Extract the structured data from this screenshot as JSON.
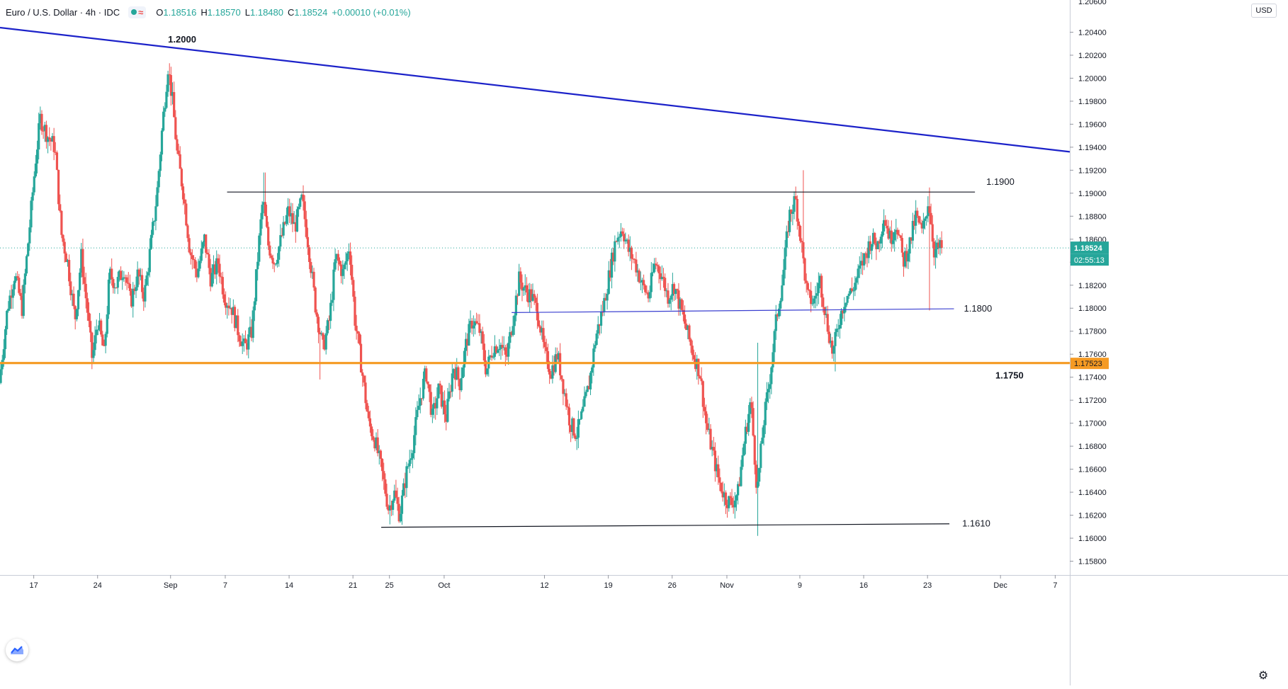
{
  "legend": {
    "symbol": "Euro / U.S. Dollar · 4h · IDC",
    "open_key": "O",
    "open": "1.18516",
    "high_key": "H",
    "high": "1.18570",
    "low_key": "L",
    "low": "1.18480",
    "close_key": "C",
    "close": "1.18524",
    "change": "+0.00010 (+0.01%)"
  },
  "price_scale": {
    "currency": "USD",
    "last_price_label": "1.18524",
    "countdown": "02:55:13",
    "marked_level_label": "1.17523",
    "top_tick_partial": "1.20600"
  },
  "colors": {
    "up": "#26a69a",
    "down": "#ef5350",
    "trendline": "#1c22c9",
    "level_1750": "#f59a23",
    "level_1800": "#3a3fd0",
    "flat_line": "#131722"
  },
  "chart_data": {
    "type": "candlestick",
    "title": "Euro / U.S. Dollar · 4h · IDC",
    "ylim": [
      1.1568,
      1.2068
    ],
    "y_ticks": [
      "1.15800",
      "1.16000",
      "1.16200",
      "1.16400",
      "1.16600",
      "1.16800",
      "1.17000",
      "1.17200",
      "1.17400",
      "1.17600",
      "1.17800",
      "1.18000",
      "1.18200",
      "1.18400",
      "1.18600",
      "1.18800",
      "1.19000",
      "1.19200",
      "1.19400",
      "1.19600",
      "1.19800",
      "1.20000",
      "1.20200",
      "1.20400"
    ],
    "x_ticks": [
      {
        "label": "17",
        "day": 17
      },
      {
        "label": "24",
        "day": 24
      },
      {
        "label": "Sep",
        "day": 32
      },
      {
        "label": "7",
        "day": 38
      },
      {
        "label": "14",
        "day": 45
      },
      {
        "label": "21",
        "day": 52
      },
      {
        "label": "25",
        "day": 56
      },
      {
        "label": "Oct",
        "day": 62
      },
      {
        "label": "12",
        "day": 73
      },
      {
        "label": "19",
        "day": 80
      },
      {
        "label": "26",
        "day": 87
      },
      {
        "label": "Nov",
        "day": 93
      },
      {
        "label": "9",
        "day": 101
      },
      {
        "label": "16",
        "day": 108
      },
      {
        "label": "23",
        "day": 115
      },
      {
        "label": "Dec",
        "day": 123
      },
      {
        "label": "7",
        "day": 129
      }
    ],
    "x_range_days": [
      13.3,
      130.6
    ],
    "last_candle_day": 116.6,
    "last_price": 1.18524,
    "price_path": [
      [
        13.3,
        1.1735
      ],
      [
        14.2,
        1.18
      ],
      [
        15.0,
        1.183
      ],
      [
        15.8,
        1.18
      ],
      [
        16.5,
        1.186
      ],
      [
        17.3,
        1.193
      ],
      [
        17.8,
        1.1965
      ],
      [
        18.6,
        1.195
      ],
      [
        19.4,
        1.194
      ],
      [
        20.1,
        1.1865
      ],
      [
        20.8,
        1.184
      ],
      [
        21.6,
        1.179
      ],
      [
        22.3,
        1.1845
      ],
      [
        23.0,
        1.1795
      ],
      [
        23.5,
        1.1755
      ],
      [
        24.1,
        1.179
      ],
      [
        24.8,
        1.176
      ],
      [
        25.4,
        1.183
      ],
      [
        26.1,
        1.182
      ],
      [
        27.0,
        1.1835
      ],
      [
        27.7,
        1.1805
      ],
      [
        28.5,
        1.183
      ],
      [
        29.2,
        1.181
      ],
      [
        30.0,
        1.186
      ],
      [
        30.6,
        1.19
      ],
      [
        31.2,
        1.196
      ],
      [
        31.8,
        1.201
      ],
      [
        32.3,
        1.198
      ],
      [
        32.8,
        1.1935
      ],
      [
        33.5,
        1.19
      ],
      [
        34.2,
        1.185
      ],
      [
        35.0,
        1.183
      ],
      [
        35.8,
        1.186
      ],
      [
        36.5,
        1.1825
      ],
      [
        37.3,
        1.184
      ],
      [
        38.0,
        1.181
      ],
      [
        38.8,
        1.18
      ],
      [
        39.5,
        1.178
      ],
      [
        40.2,
        1.1765
      ],
      [
        41.0,
        1.178
      ],
      [
        41.7,
        1.185
      ],
      [
        42.2,
        1.1895
      ],
      [
        42.8,
        1.1855
      ],
      [
        43.5,
        1.184
      ],
      [
        44.2,
        1.186
      ],
      [
        45.0,
        1.1885
      ],
      [
        45.7,
        1.187
      ],
      [
        46.5,
        1.1895
      ],
      [
        47.2,
        1.1855
      ],
      [
        48.0,
        1.18
      ],
      [
        48.8,
        1.1765
      ],
      [
        49.5,
        1.179
      ],
      [
        50.2,
        1.1845
      ],
      [
        51.0,
        1.183
      ],
      [
        51.7,
        1.1855
      ],
      [
        52.3,
        1.179
      ],
      [
        53.0,
        1.175
      ],
      [
        53.8,
        1.17
      ],
      [
        54.5,
        1.1685
      ],
      [
        55.2,
        1.166
      ],
      [
        56.0,
        1.1625
      ],
      [
        56.6,
        1.164
      ],
      [
        57.2,
        1.162
      ],
      [
        57.9,
        1.1655
      ],
      [
        58.6,
        1.168
      ],
      [
        59.4,
        1.172
      ],
      [
        60.1,
        1.1745
      ],
      [
        60.8,
        1.1705
      ],
      [
        61.5,
        1.173
      ],
      [
        62.3,
        1.1705
      ],
      [
        63.1,
        1.175
      ],
      [
        63.8,
        1.1735
      ],
      [
        64.5,
        1.177
      ],
      [
        65.2,
        1.179
      ],
      [
        66.0,
        1.178
      ],
      [
        66.7,
        1.1745
      ],
      [
        67.4,
        1.1765
      ],
      [
        68.2,
        1.177
      ],
      [
        68.9,
        1.1755
      ],
      [
        69.7,
        1.1795
      ],
      [
        70.3,
        1.1825
      ],
      [
        71.0,
        1.1815
      ],
      [
        71.7,
        1.181
      ],
      [
        72.4,
        1.1795
      ],
      [
        73.1,
        1.176
      ],
      [
        73.8,
        1.1745
      ],
      [
        74.5,
        1.176
      ],
      [
        75.2,
        1.173
      ],
      [
        75.9,
        1.17
      ],
      [
        76.6,
        1.169
      ],
      [
        77.3,
        1.171
      ],
      [
        78.0,
        1.1735
      ],
      [
        78.7,
        1.1775
      ],
      [
        79.5,
        1.18
      ],
      [
        80.2,
        1.183
      ],
      [
        80.9,
        1.186
      ],
      [
        81.6,
        1.187
      ],
      [
        82.3,
        1.185
      ],
      [
        83.0,
        1.184
      ],
      [
        83.8,
        1.182
      ],
      [
        84.5,
        1.181
      ],
      [
        85.2,
        1.184
      ],
      [
        85.9,
        1.183
      ],
      [
        86.6,
        1.181
      ],
      [
        87.3,
        1.182
      ],
      [
        88.0,
        1.18
      ],
      [
        88.7,
        1.178
      ],
      [
        89.4,
        1.176
      ],
      [
        90.1,
        1.1745
      ],
      [
        90.8,
        1.17
      ],
      [
        91.5,
        1.1675
      ],
      [
        92.2,
        1.165
      ],
      [
        92.9,
        1.1635
      ],
      [
        93.6,
        1.163
      ],
      [
        94.3,
        1.164
      ],
      [
        95.0,
        1.1685
      ],
      [
        95.7,
        1.172
      ],
      [
        96.4,
        1.164
      ],
      [
        97.1,
        1.17
      ],
      [
        97.8,
        1.174
      ],
      [
        98.5,
        1.179
      ],
      [
        99.2,
        1.1825
      ],
      [
        99.9,
        1.188
      ],
      [
        100.6,
        1.1895
      ],
      [
        101.2,
        1.186
      ],
      [
        101.9,
        1.181
      ],
      [
        102.6,
        1.1805
      ],
      [
        103.3,
        1.1825
      ],
      [
        104.0,
        1.179
      ],
      [
        104.7,
        1.176
      ],
      [
        105.4,
        1.179
      ],
      [
        106.1,
        1.181
      ],
      [
        106.8,
        1.1815
      ],
      [
        107.5,
        1.183
      ],
      [
        108.2,
        1.1845
      ],
      [
        108.9,
        1.186
      ],
      [
        109.6,
        1.1855
      ],
      [
        110.3,
        1.188
      ],
      [
        111.0,
        1.186
      ],
      [
        111.7,
        1.1875
      ],
      [
        112.4,
        1.184
      ],
      [
        113.1,
        1.1855
      ],
      [
        113.8,
        1.188
      ],
      [
        114.5,
        1.1865
      ],
      [
        115.2,
        1.1895
      ],
      [
        115.8,
        1.185
      ],
      [
        116.6,
        1.18524
      ]
    ],
    "wick_spikes": [
      {
        "day": 31.9,
        "high": 1.201
      },
      {
        "day": 42.2,
        "high": 1.1918
      },
      {
        "day": 55.9,
        "low": 1.1612
      },
      {
        "day": 96.3,
        "low": 1.1602,
        "high": 1.177
      },
      {
        "day": 101.3,
        "high": 1.192
      },
      {
        "day": 115.1,
        "high": 1.1905,
        "low": 1.1798
      },
      {
        "day": 104.8,
        "low": 1.1745
      },
      {
        "day": 48.3,
        "low": 1.1738
      }
    ],
    "trendline": {
      "from": [
        13.3,
        1.2044
      ],
      "to": [
        130.6,
        1.1936
      ]
    },
    "levels": [
      {
        "id": "level-1900",
        "label": "1.1900",
        "price": 1.19,
        "from_day": 38.2,
        "to_day": 120.2,
        "start_price": 1.1901,
        "end_price": 1.1901
      },
      {
        "id": "level-1800",
        "label": "1.1800",
        "price": 1.18,
        "from_day": 69.4,
        "to_day": 117.9,
        "start_price": 1.17962,
        "end_price": 1.17995
      },
      {
        "id": "level-1750",
        "label": "1.1750",
        "price": 1.1752,
        "from_day": 13.3,
        "to_day": 130.6,
        "start_price": 1.17523,
        "end_price": 1.17523
      },
      {
        "id": "level-1610",
        "label": "1.1610",
        "price": 1.161,
        "from_day": 55.1,
        "to_day": 117.4,
        "start_price": 1.16095,
        "end_price": 1.16125
      }
    ],
    "annotations": [
      {
        "label": "1.2000",
        "day": 32.5,
        "price": 1.2015
      }
    ]
  }
}
